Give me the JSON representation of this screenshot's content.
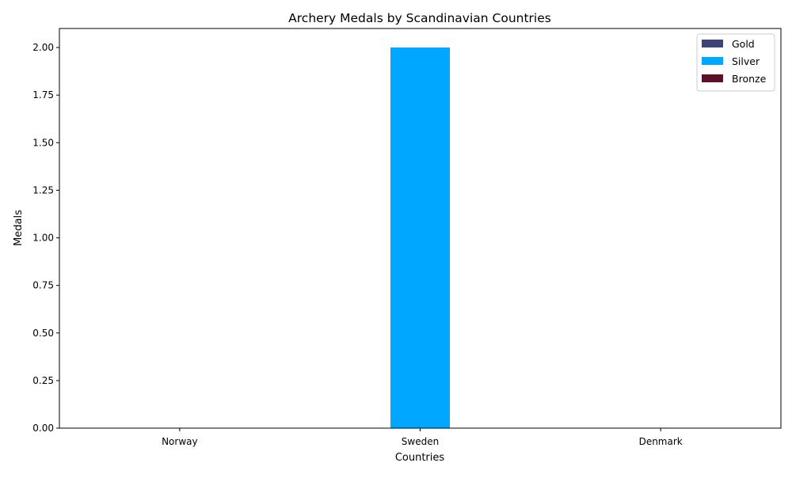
{
  "chart_data": {
    "type": "bar",
    "title": "Archery Medals by Scandinavian Countries",
    "xlabel": "Countries",
    "ylabel": "Medals",
    "categories": [
      "Norway",
      "Sweden",
      "Denmark"
    ],
    "series": [
      {
        "name": "Gold",
        "color": "#3d4577",
        "values": [
          0,
          0,
          0
        ]
      },
      {
        "name": "Silver",
        "color": "#00a7ff",
        "values": [
          0,
          2,
          0
        ]
      },
      {
        "name": "Bronze",
        "color": "#5a1127",
        "values": [
          0,
          0,
          0
        ]
      }
    ],
    "ylim": [
      0,
      2.1
    ],
    "yticks": [
      "0.00",
      "0.25",
      "0.50",
      "0.75",
      "1.00",
      "1.25",
      "1.50",
      "1.75",
      "2.00"
    ],
    "legend_position": "top-right",
    "grid": false
  }
}
